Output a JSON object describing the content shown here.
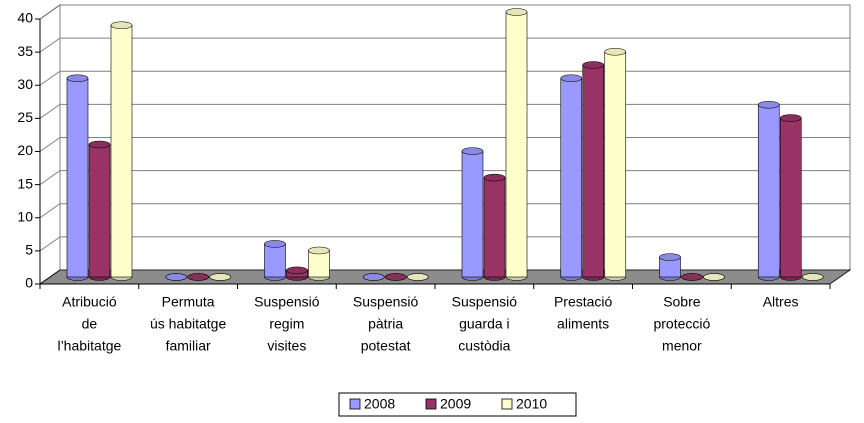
{
  "chart_data": {
    "type": "bar3d",
    "categories": [
      [
        "Atribució",
        "de",
        "l’habitatge"
      ],
      [
        "Permuta",
        "ús habitatge",
        "familiar"
      ],
      [
        "Suspensió",
        "regim",
        "visites"
      ],
      [
        "Suspensió",
        "pàtria",
        "potestat"
      ],
      [
        "Suspensió",
        "guarda i",
        "custòdia"
      ],
      [
        "Prestació",
        "aliments"
      ],
      [
        "Sobre",
        "protecció",
        "menor"
      ],
      [
        "Altres"
      ]
    ],
    "series": [
      {
        "name": "2008",
        "color": "#9999ff",
        "values": [
          30,
          0,
          5,
          0,
          19,
          30,
          3,
          26
        ]
      },
      {
        "name": "2009",
        "color": "#993366",
        "values": [
          20,
          0,
          1,
          0,
          15,
          32,
          0,
          24
        ]
      },
      {
        "name": "2010",
        "color": "#ffffcc",
        "values": [
          38,
          0,
          4,
          0,
          40,
          34,
          0,
          0
        ]
      }
    ],
    "ylim": [
      0,
      40
    ],
    "yticks": [
      0,
      5,
      10,
      15,
      20,
      25,
      30,
      35,
      40
    ],
    "grid": true,
    "legend": "bottom"
  }
}
